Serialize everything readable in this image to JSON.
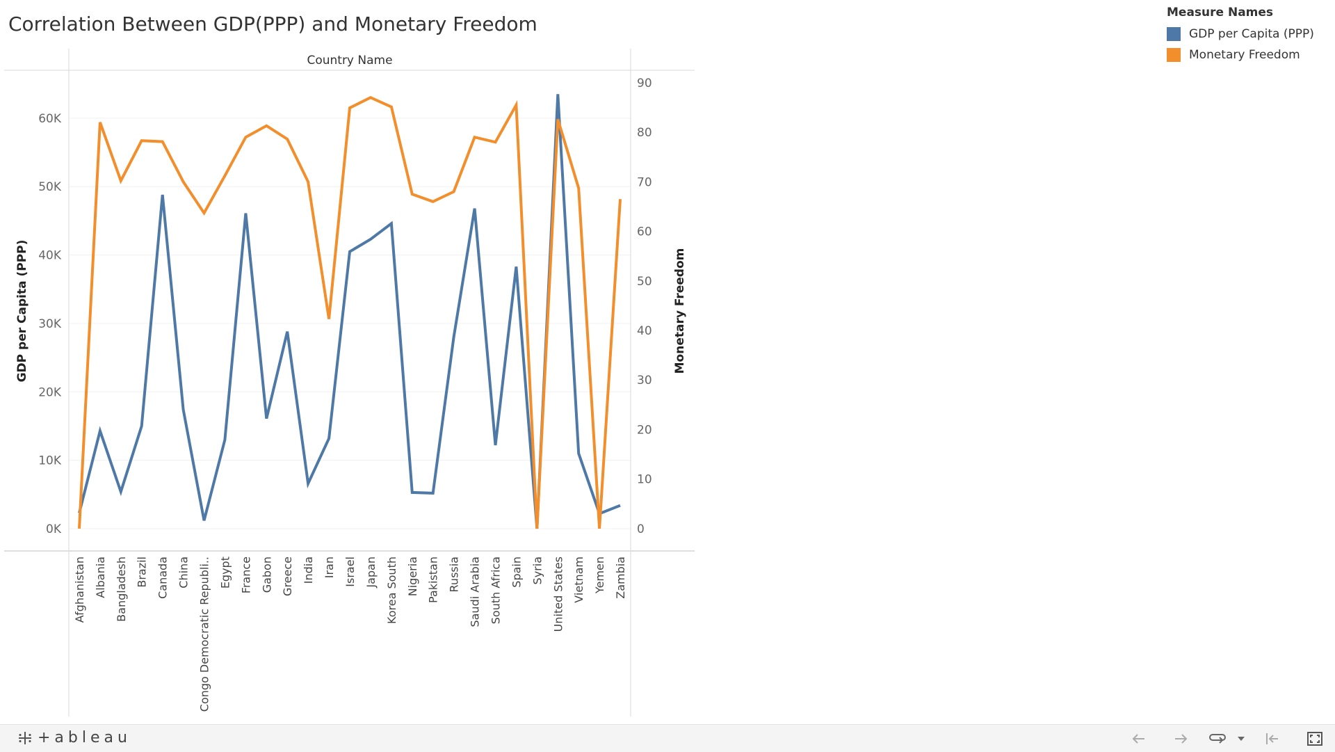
{
  "title": "Correlation Between GDP(PPP) and Monetary Freedom",
  "legend": {
    "title": "Measure Names",
    "items": [
      {
        "label": "GDP per Capita (PPP)",
        "color": "#4e79a7"
      },
      {
        "label": "Monetary Freedom",
        "color": "#f28e2b"
      }
    ]
  },
  "toolbar": {
    "logo_text": "+ableau",
    "buttons": [
      "undo-icon",
      "redo-icon",
      "revert-icon",
      "dropdown-icon",
      "reset-icon",
      "fullscreen-icon"
    ]
  },
  "chart_data": {
    "type": "line",
    "column_header": "Country Name",
    "categories": [
      "Afghanistan",
      "Albania",
      "Bangladesh",
      "Brazil",
      "Canada",
      "China",
      "Congo Democratic Republi..",
      "Egypt",
      "France",
      "Gabon",
      "Greece",
      "India",
      "Iran",
      "Israel",
      "Japan",
      "Korea South",
      "Nigeria",
      "Pakistan",
      "Russia",
      "Saudi Arabia",
      "South Africa",
      "Spain",
      "Syria",
      "United States",
      "Vietnam",
      "Yemen",
      "Zambia"
    ],
    "left_axis": {
      "label": "GDP per Capita (PPP)",
      "range": [
        -3250,
        67000
      ],
      "ticks": [
        0,
        10000,
        20000,
        30000,
        40000,
        50000,
        60000
      ],
      "tick_labels": [
        "0K",
        "10K",
        "20K",
        "30K",
        "40K",
        "50K",
        "60K"
      ]
    },
    "right_axis": {
      "label": "Monetary Freedom",
      "range": [
        -4.5,
        92.5
      ],
      "ticks": [
        0,
        10,
        20,
        30,
        40,
        50,
        60,
        70,
        80,
        90
      ],
      "tick_labels": [
        "0",
        "10",
        "20",
        "30",
        "40",
        "50",
        "60",
        "70",
        "80",
        "90"
      ]
    },
    "series": [
      {
        "name": "GDP per Capita (PPP)",
        "color": "#4e79a7",
        "axis": "left",
        "values": [
          2300,
          14300,
          5400,
          15000,
          48800,
          17400,
          1200,
          13000,
          46100,
          16100,
          28800,
          6600,
          13200,
          40500,
          42300,
          44600,
          5300,
          5200,
          28000,
          46800,
          12200,
          38300,
          0,
          63500,
          11000,
          2200,
          3400
        ]
      },
      {
        "name": "Monetary Freedom",
        "color": "#f28e2b",
        "axis": "right",
        "values": [
          0,
          82,
          70.2,
          78.3,
          78.1,
          70,
          63.7,
          71.2,
          79,
          81.3,
          78.6,
          70,
          42.3,
          84.9,
          87,
          85.1,
          67.5,
          66,
          68,
          79,
          78,
          85.5,
          0,
          82.6,
          68.7,
          0,
          66.5
        ]
      }
    ],
    "grid": true
  }
}
